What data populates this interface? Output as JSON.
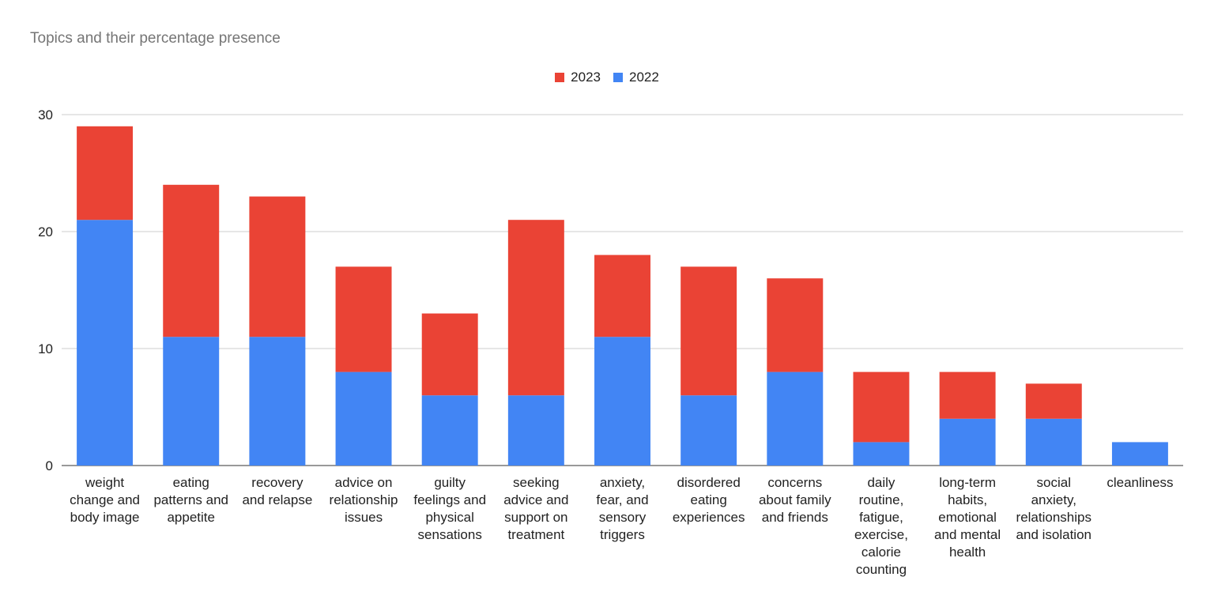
{
  "chart_data": {
    "type": "bar",
    "stacked": true,
    "title": "Topics and their percentage presence",
    "xlabel": "",
    "ylabel": "",
    "ylim": [
      0,
      30
    ],
    "yticks": [
      0,
      10,
      20,
      30
    ],
    "grid": true,
    "legend_position": "top",
    "categories": [
      "weight change and body image",
      "eating patterns and appetite",
      "recovery and relapse",
      "advice on relationship issues",
      "guilty feelings and physical sensations",
      "seeking advice and support on treatment",
      "anxiety, fear, and sensory triggers",
      "disordered eating experiences",
      "concerns about family and friends",
      "daily routine, fatigue, exercise, calorie counting",
      "long-term habits, emotional and mental health",
      "social anxiety, relationships and isolation",
      "cleanliness"
    ],
    "category_lines": [
      [
        "weight",
        "change and",
        "body image"
      ],
      [
        "eating",
        "patterns and",
        "appetite"
      ],
      [
        "recovery",
        "and relapse"
      ],
      [
        "advice on",
        "relationship",
        "issues"
      ],
      [
        "guilty",
        "feelings and",
        "physical",
        "sensations"
      ],
      [
        "seeking",
        "advice and",
        "support on",
        "treatment"
      ],
      [
        "anxiety,",
        "fear, and",
        "sensory",
        "triggers"
      ],
      [
        "disordered",
        "eating",
        "experiences"
      ],
      [
        "concerns",
        "about family",
        "and friends"
      ],
      [
        "daily",
        "routine,",
        "fatigue,",
        "exercise,",
        "calorie",
        "counting"
      ],
      [
        "long-term",
        "habits,",
        "emotional",
        "and mental",
        "health"
      ],
      [
        "social",
        "anxiety,",
        "relationships",
        "and isolation"
      ],
      [
        "cleanliness"
      ]
    ],
    "series": [
      {
        "name": "2022",
        "color": "#4285F4",
        "values": [
          21,
          11,
          11,
          8,
          6,
          6,
          11,
          6,
          8,
          2,
          4,
          4,
          2
        ]
      },
      {
        "name": "2023",
        "color": "#EA4335",
        "values": [
          8,
          13,
          12,
          9,
          7,
          15,
          7,
          11,
          8,
          6,
          4,
          3,
          0
        ]
      }
    ],
    "legend_order": [
      "2023",
      "2022"
    ]
  }
}
